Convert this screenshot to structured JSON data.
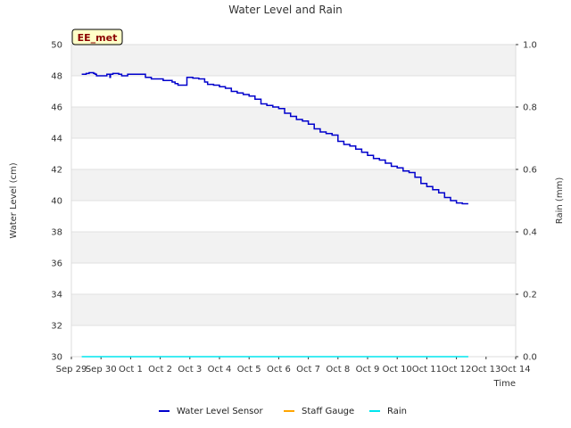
{
  "chart_data": {
    "type": "line",
    "title": "Water Level and Rain",
    "xlabel": "Time",
    "ylabel": "Water Level (cm)",
    "y2label": "Rain (mm)",
    "site_label": "EE_met",
    "x_ticks": [
      "Sep 29",
      "Sep 30",
      "Oct 1",
      "Oct 2",
      "Oct 3",
      "Oct 4",
      "Oct 5",
      "Oct 6",
      "Oct 7",
      "Oct 8",
      "Oct 9",
      "Oct 10",
      "Oct 11",
      "Oct 12",
      "Oct 13",
      "Oct 14"
    ],
    "xlim": [
      0,
      15
    ],
    "ylim": [
      30,
      50
    ],
    "y_ticks": [
      "30",
      "32",
      "34",
      "36",
      "38",
      "40",
      "42",
      "44",
      "46",
      "48",
      "50"
    ],
    "y2lim": [
      0,
      1
    ],
    "y2_ticks": [
      "0.0",
      "0.2",
      "0.4",
      "0.6",
      "0.8",
      "1.0"
    ],
    "grid": true,
    "banded_background": true,
    "legend_position": "bottom-center",
    "series": [
      {
        "name": "Water Level Sensor",
        "color": "#0000cc",
        "axis": "left",
        "x": [
          0.35,
          0.5,
          0.6,
          0.7,
          0.75,
          0.8,
          0.85,
          0.9,
          1.0,
          1.1,
          1.2,
          1.3,
          1.32,
          1.35,
          1.4,
          1.5,
          1.6,
          1.7,
          1.8,
          1.9,
          2.0,
          2.1,
          2.2,
          2.3,
          2.5,
          2.7,
          2.8,
          3.0,
          3.1,
          3.2,
          3.4,
          3.5,
          3.6,
          3.7,
          3.9,
          4.0,
          4.1,
          4.3,
          4.5,
          4.6,
          4.8,
          5.0,
          5.2,
          5.4,
          5.6,
          5.8,
          6.0,
          6.2,
          6.4,
          6.6,
          6.8,
          7.0,
          7.2,
          7.4,
          7.6,
          7.8,
          8.0,
          8.2,
          8.4,
          8.6,
          8.8,
          9.0,
          9.2,
          9.4,
          9.6,
          9.8,
          10.0,
          10.2,
          10.4,
          10.6,
          10.8,
          11.0,
          11.2,
          11.4,
          11.6,
          11.8,
          12.0,
          12.2,
          12.4,
          12.6,
          12.8,
          13.0,
          13.2,
          13.4
        ],
        "values": [
          48.1,
          48.15,
          48.2,
          48.2,
          48.15,
          48.1,
          48.0,
          48.0,
          48.0,
          48.0,
          48.1,
          47.9,
          48.1,
          48.1,
          48.15,
          48.15,
          48.1,
          48.0,
          48.0,
          48.1,
          48.1,
          48.1,
          48.1,
          48.1,
          47.9,
          47.8,
          47.8,
          47.8,
          47.7,
          47.7,
          47.6,
          47.5,
          47.4,
          47.4,
          47.9,
          47.9,
          47.85,
          47.8,
          47.6,
          47.45,
          47.4,
          47.3,
          47.2,
          47.0,
          46.9,
          46.8,
          46.7,
          46.5,
          46.2,
          46.1,
          46.0,
          45.9,
          45.6,
          45.4,
          45.2,
          45.1,
          44.9,
          44.6,
          44.4,
          44.3,
          44.2,
          43.8,
          43.6,
          43.5,
          43.3,
          43.1,
          42.9,
          42.7,
          42.6,
          42.4,
          42.2,
          42.1,
          41.9,
          41.8,
          41.5,
          41.1,
          40.9,
          40.7,
          40.5,
          40.2,
          40.0,
          39.85,
          39.8,
          39.8
        ]
      },
      {
        "name": "Staff Gauge",
        "color": "#ffa500",
        "axis": "left",
        "x": [],
        "values": []
      },
      {
        "name": "Rain",
        "color": "#00e5ee",
        "axis": "right",
        "x": [
          0.35,
          13.4
        ],
        "values": [
          0,
          0
        ]
      }
    ]
  }
}
